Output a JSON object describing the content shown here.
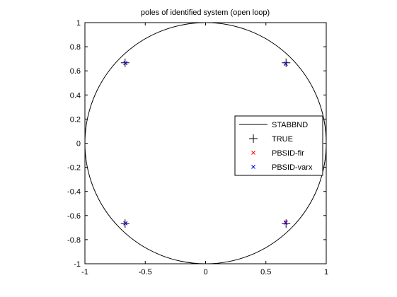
{
  "chart_data": {
    "type": "scatter",
    "title": "poles of identified system (open loop)",
    "xlabel": "",
    "ylabel": "",
    "xlim": [
      -1,
      1
    ],
    "ylim": [
      -1,
      1
    ],
    "xticks": [
      -1,
      -0.5,
      0,
      0.5,
      1
    ],
    "yticks": [
      -1,
      -0.8,
      -0.6,
      -0.4,
      -0.2,
      0,
      0.2,
      0.4,
      0.6,
      0.8,
      1
    ],
    "xtick_labels": [
      "-1",
      "-0.5",
      "0",
      "0.5",
      "1"
    ],
    "ytick_labels": [
      "-1",
      "-0.8",
      "-0.6",
      "-0.4",
      "-0.2",
      "0",
      "0.2",
      "0.4",
      "0.6",
      "0.8",
      "1"
    ],
    "grid": false,
    "legend_position": "right",
    "series": [
      {
        "name": "STABBND",
        "kind": "line",
        "shape": "unit-circle",
        "color": "#000000"
      },
      {
        "name": "TRUE",
        "kind": "marker",
        "marker": "plus",
        "color": "#000000",
        "x": [
          -0.667,
          0.667,
          -0.667,
          0.667
        ],
        "y": [
          0.667,
          0.667,
          -0.667,
          -0.667
        ]
      },
      {
        "name": "PBSID-fir",
        "kind": "marker",
        "marker": "cross",
        "color": "#ff0000",
        "x": [
          -0.665,
          0.665,
          -0.665,
          0.665
        ],
        "y": [
          0.663,
          0.658,
          -0.663,
          -0.655
        ]
      },
      {
        "name": "PBSID-varx",
        "kind": "marker",
        "marker": "cross",
        "color": "#0000ff",
        "x": [
          -0.664,
          0.664,
          -0.664,
          0.664
        ],
        "y": [
          0.665,
          0.66,
          -0.665,
          -0.66
        ]
      }
    ]
  }
}
